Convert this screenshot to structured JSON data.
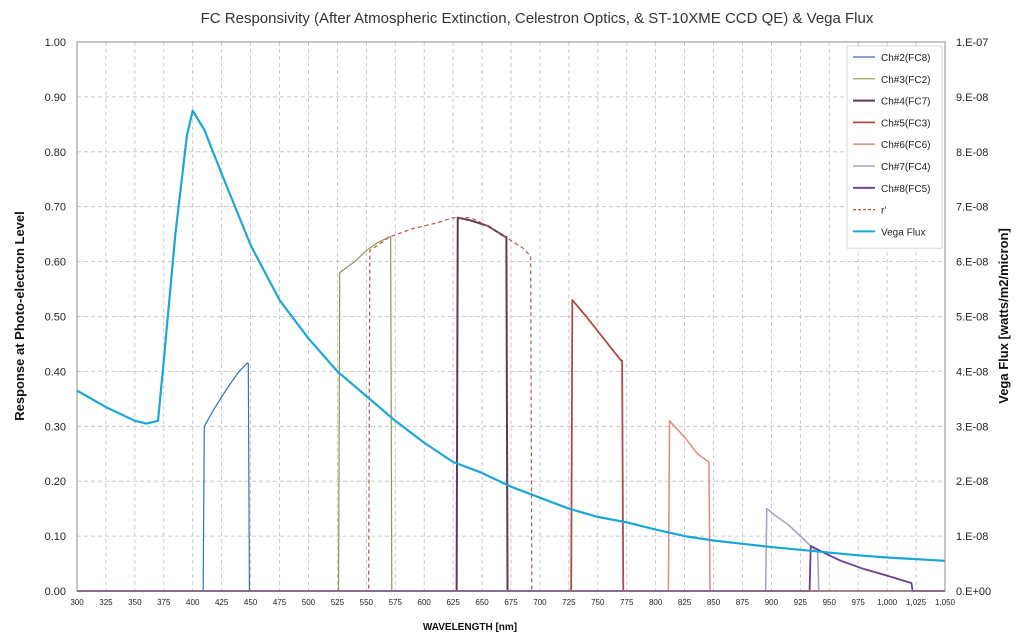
{
  "chart_data": {
    "type": "line",
    "title": "FC Responsivity (After Atmospheric Extinction,  Celestron Optics, & ST-10XME CCD QE) & Vega Flux",
    "xlabel": "WAVELENGTH [nm]",
    "ylabel": "Response at Photo-electron Level",
    "y2label": "Vega Flux [watts/m2/micron]",
    "xlim": [
      300,
      1050
    ],
    "ylim": [
      0,
      1.0
    ],
    "y2lim": [
      0,
      1e-07
    ],
    "grid": true,
    "legend_position": "top-right",
    "x_ticks": [
      "300",
      "325",
      "350",
      "375",
      "400",
      "425",
      "450",
      "475",
      "500",
      "525",
      "550",
      "575",
      "600",
      "625",
      "650",
      "675",
      "700",
      "725",
      "750",
      "775",
      "800",
      "825",
      "850",
      "875",
      "900",
      "925",
      "950",
      "975",
      "1,000",
      "1,025",
      "1,050"
    ],
    "y_ticks": [
      "0.00",
      "0.10",
      "0.20",
      "0.30",
      "0.40",
      "0.50",
      "0.60",
      "0.70",
      "0.80",
      "0.90",
      "1.00"
    ],
    "y2_ticks": [
      "0.E+00",
      "1.E-08",
      "2.E-08",
      "3.E-08",
      "4.E-08",
      "5.E-08",
      "6.E-08",
      "7.E-08",
      "8.E-08",
      "9.E-08",
      "1.E-07"
    ],
    "series": [
      {
        "name": "Ch#2(FC8)",
        "color": "#2e75b6",
        "dash": "",
        "width": 1.2,
        "x": [
          300,
          409,
          410,
          418,
          430,
          440,
          447,
          448,
          449,
          1050
        ],
        "y": [
          0,
          0,
          0.3,
          0.33,
          0.37,
          0.4,
          0.415,
          0.415,
          0,
          0
        ]
      },
      {
        "name": "Ch#3(FC2)",
        "color": "#8a9a4a",
        "dash": "",
        "width": 1.2,
        "x": [
          300,
          526,
          527,
          540,
          550,
          560,
          570,
          571,
          572,
          1050
        ],
        "y": [
          0,
          0,
          0.58,
          0.6,
          0.62,
          0.635,
          0.645,
          0.645,
          0,
          0
        ]
      },
      {
        "name": "Ch#4(FC7)",
        "color": "#5b3a57",
        "dash": "",
        "width": 2.0,
        "x": [
          300,
          628,
          629,
          640,
          655,
          670,
          671,
          672,
          1050
        ],
        "y": [
          0,
          0,
          0.68,
          0.675,
          0.665,
          0.645,
          0.645,
          0,
          0
        ]
      },
      {
        "name": "Ch#5(FC3)",
        "color": "#b04a45",
        "dash": "",
        "width": 1.8,
        "x": [
          300,
          727,
          728,
          740,
          755,
          770,
          771,
          772,
          1050
        ],
        "y": [
          0,
          0,
          0.53,
          0.5,
          0.46,
          0.42,
          0.42,
          0,
          0
        ]
      },
      {
        "name": "Ch#6(FC6)",
        "color": "#e0908b",
        "dash": "",
        "width": 1.6,
        "x": [
          300,
          811,
          812,
          825,
          836,
          846,
          847,
          1050
        ],
        "y": [
          0,
          0,
          0.31,
          0.28,
          0.25,
          0.235,
          0,
          0
        ]
      },
      {
        "name": "Ch#7(FC4)",
        "color": "#a9a3c9",
        "dash": "",
        "width": 1.6,
        "x": [
          300,
          895,
          896,
          905,
          915,
          930,
          940,
          941,
          1050
        ],
        "y": [
          0,
          0,
          0.15,
          0.135,
          0.12,
          0.09,
          0.07,
          0,
          0
        ]
      },
      {
        "name": "Ch#8(FC5)",
        "color": "#6a3f93",
        "dash": "",
        "width": 1.8,
        "x": [
          300,
          933,
          934,
          945,
          960,
          980,
          1000,
          1020,
          1021,
          1022,
          1050
        ],
        "y": [
          0,
          0,
          0.082,
          0.07,
          0.055,
          0.04,
          0.028,
          0.015,
          0.015,
          0,
          0
        ]
      },
      {
        "name": "r'",
        "color": "#c0504d",
        "dash": "4,3",
        "width": 1.2,
        "x": [
          300,
          552,
          553,
          570,
          590,
          610,
          625,
          640,
          655,
          670,
          685,
          692,
          693,
          1050
        ],
        "y": [
          0,
          0,
          0.62,
          0.645,
          0.66,
          0.67,
          0.68,
          0.68,
          0.665,
          0.645,
          0.625,
          0.61,
          0,
          0
        ]
      },
      {
        "name": "Vega Flux",
        "color": "#1aa7d6",
        "dash": "",
        "width": 2.2,
        "axis": "right",
        "x": [
          300,
          325,
          350,
          360,
          370,
          375,
          385,
          395,
          400,
          410,
          425,
          450,
          475,
          500,
          525,
          550,
          575,
          600,
          625,
          650,
          675,
          700,
          725,
          750,
          775,
          800,
          825,
          850,
          875,
          900,
          925,
          950,
          975,
          1000,
          1025,
          1050
        ],
        "y": [
          3.65e-08,
          3.35e-08,
          3.1e-08,
          3.05e-08,
          3.1e-08,
          4.2e-08,
          6.5e-08,
          8.3e-08,
          8.75e-08,
          8.4e-08,
          7.6e-08,
          6.3e-08,
          5.3e-08,
          4.6e-08,
          4e-08,
          3.55e-08,
          3.1e-08,
          2.7e-08,
          2.35e-08,
          2.15e-08,
          1.9e-08,
          1.7e-08,
          1.5e-08,
          1.35e-08,
          1.25e-08,
          1.12e-08,
          1e-08,
          9.2e-09,
          8.6e-09,
          8e-09,
          7.5e-09,
          7e-09,
          6.5e-09,
          6.1e-09,
          5.8e-09,
          5.5e-09
        ]
      }
    ]
  }
}
